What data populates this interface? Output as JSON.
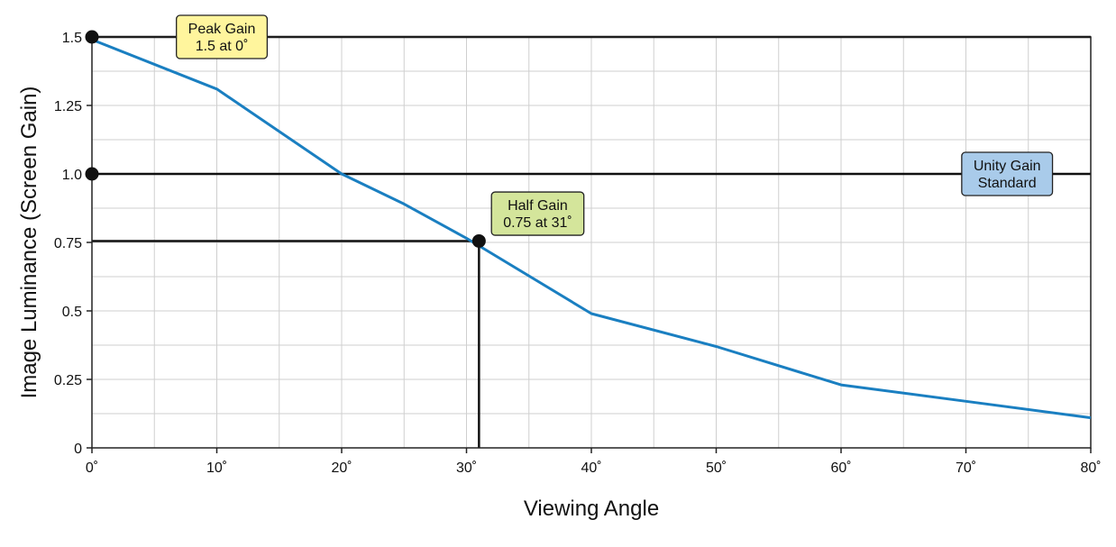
{
  "chart_data": {
    "type": "line",
    "xlabel": "Viewing Angle",
    "ylabel": "Image Luminance (Screen Gain)",
    "xlim": [
      0,
      80
    ],
    "ylim": [
      0,
      1.5
    ],
    "x_ticks": [
      0,
      10,
      20,
      30,
      40,
      50,
      60,
      70,
      80
    ],
    "x_tick_labels": [
      "0˚",
      "10˚",
      "20˚",
      "30˚",
      "40˚",
      "50˚",
      "60˚",
      "70˚",
      "80˚"
    ],
    "y_ticks": [
      0,
      0.25,
      0.5,
      0.75,
      1.0,
      1.25,
      1.5
    ],
    "y_tick_labels": [
      "0",
      "0.25",
      "0.5",
      "0.75",
      "1.0",
      "1.25",
      "1.5"
    ],
    "x_minor_step": 5,
    "y_minor_step": 0.125,
    "grid": true,
    "series": [
      {
        "color": "#1a7fc1",
        "x": [
          0,
          10,
          20,
          25,
          30,
          40,
          50,
          60,
          70,
          80
        ],
        "y": [
          1.49,
          1.31,
          1.0,
          0.89,
          0.765,
          0.49,
          0.37,
          0.23,
          0.17,
          0.11
        ]
      }
    ],
    "markers": [
      {
        "x": 0,
        "y": 1.5
      },
      {
        "x": 0,
        "y": 1.0
      },
      {
        "x": 31,
        "y": 0.755
      }
    ],
    "reference_lines": [
      {
        "type": "h",
        "y": 1.5,
        "x_from": 0,
        "x_to": 80
      },
      {
        "type": "h",
        "y": 1.0,
        "x_from": 0,
        "x_to": 80
      },
      {
        "type": "h",
        "y": 0.755,
        "x_from": 0,
        "x_to": 31
      },
      {
        "type": "v",
        "x": 31,
        "y_from": 0,
        "y_to": 0.755
      }
    ],
    "annotations": [
      {
        "lines": [
          "Peak Gain",
          "1.5 at 0˚"
        ],
        "fill": "#fff59d",
        "anchor_x": 10.4,
        "anchor_y": 1.5
      },
      {
        "lines": [
          "Unity Gain",
          "Standard"
        ],
        "fill": "#a9cbea",
        "anchor_x": 73.3,
        "anchor_y": 1.0
      },
      {
        "lines": [
          "Half Gain",
          "0.75 at 31˚"
        ],
        "fill": "#d4e59b",
        "anchor_x": 35.7,
        "anchor_y": 0.855
      }
    ]
  }
}
